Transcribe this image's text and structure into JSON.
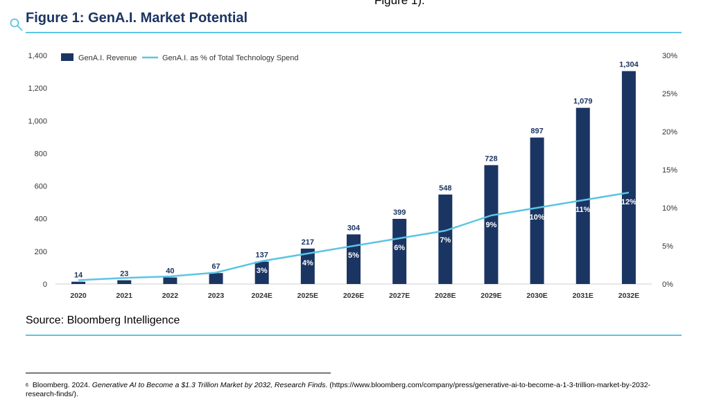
{
  "page": {
    "top_fragment": "Figure 1).",
    "figure_title": "Figure 1: GenA.I. Market Potential",
    "source": "Source: Bloomberg Intelligence",
    "footnote_marker": "6",
    "footnote_pre": "Bloomberg. 2024. ",
    "footnote_italic": "Generative AI to Become a $1.3 Trillion Market by 2032, Research Finds",
    "footnote_post": ". (https://www.bloomberg.com/company/press/generative-ai-to-become-a-1-3-trillion-market-by-2032-research-finds/)."
  },
  "colors": {
    "bar": "#1b3563",
    "line": "#5bc4e6",
    "title": "#1b3563"
  },
  "chart_data": {
    "type": "bar",
    "categories": [
      "2020",
      "2021",
      "2022",
      "2023",
      "2024E",
      "2025E",
      "2026E",
      "2027E",
      "2028E",
      "2029E",
      "2030E",
      "2031E",
      "2032E"
    ],
    "series": [
      {
        "name": "GenA.I. Revenue",
        "type": "bar",
        "axis": "left",
        "values": [
          14,
          23,
          40,
          67,
          137,
          217,
          304,
          399,
          548,
          728,
          897,
          1079,
          1304
        ],
        "labels": [
          "14",
          "23",
          "40",
          "67",
          "137",
          "217",
          "304",
          "399",
          "548",
          "728",
          "897",
          "1,079",
          "1,304"
        ]
      },
      {
        "name": "GenA.I. as  % of Total Technology Spend",
        "type": "line",
        "axis": "right",
        "values": [
          0.5,
          0.8,
          1.0,
          1.5,
          3,
          4,
          5,
          6,
          7,
          9,
          10,
          11,
          12
        ],
        "labels": [
          "",
          "",
          "",
          "",
          "3%",
          "4%",
          "5%",
          "6%",
          "7%",
          "9%",
          "10%",
          "11%",
          "12%"
        ]
      }
    ],
    "y_left": {
      "ylim": [
        0,
        1400
      ],
      "ticks": [
        "0",
        "200",
        "400",
        "600",
        "800",
        "1,000",
        "1,200",
        "1,400"
      ]
    },
    "y_right": {
      "ylim": [
        0,
        30
      ],
      "ticks": [
        "0%",
        "5%",
        "10%",
        "15%",
        "20%",
        "25%",
        "30%"
      ]
    },
    "legend": "top-left",
    "grid": false
  }
}
